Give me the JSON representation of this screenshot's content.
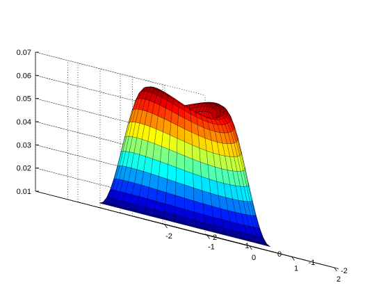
{
  "chart_data": {
    "type": "surface",
    "title": "",
    "xlabel": "",
    "ylabel": "",
    "zlabel": "",
    "xlim": [
      -2,
      2
    ],
    "ylim": [
      -2,
      2
    ],
    "zlim": [
      0.01,
      0.07
    ],
    "grid": true,
    "colormap": "jet",
    "x_ticks": [
      "-2",
      "-1",
      "0",
      "1",
      "2"
    ],
    "y_ticks": [
      "-2",
      "-1",
      "0",
      "1",
      "2"
    ],
    "z_ticks": [
      "0.01",
      "0.02",
      "0.03",
      "0.04",
      "0.05",
      "0.06",
      "0.07"
    ],
    "surface": {
      "domain": "disk",
      "radius_range": [
        0,
        1.6
      ],
      "center_value": 0.043,
      "edge_value": 0.012,
      "peak_values": {
        "along_x_axis": 0.068,
        "along_y_axis": 0.061
      },
      "peak_radius": 0.75
    }
  }
}
